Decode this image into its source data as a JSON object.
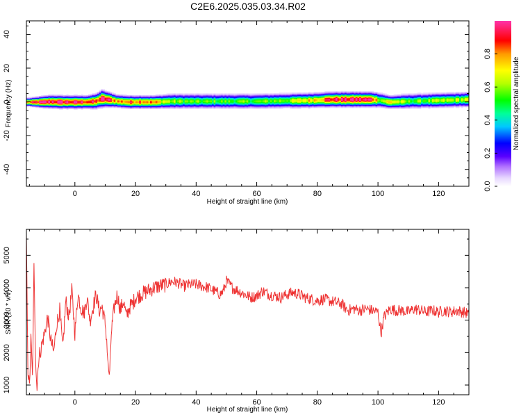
{
  "figure": {
    "title": "C2E6.2025.035.03.34.R02"
  },
  "chart_data": [
    {
      "type": "heatmap",
      "xlabel": "Height of straight line (km)",
      "ylabel": "Frequency (Hz)",
      "xlim": [
        -16,
        130
      ],
      "ylim": [
        -50,
        48
      ],
      "x_ticks": [
        0,
        20,
        40,
        60,
        80,
        100,
        120
      ],
      "y_ticks": [
        -40,
        -20,
        0,
        20,
        40
      ],
      "colorbar": {
        "label": "Normalized spectral amplitude",
        "range": [
          0,
          1
        ],
        "ticks": [
          0.0,
          0.2,
          0.4,
          0.6,
          0.8
        ]
      },
      "band": {
        "description_center_frequency_hz": 0,
        "ridge": [
          {
            "x": -15,
            "f": 0.0,
            "w": 2.0,
            "a": 0.8
          },
          {
            "x": -12,
            "f": 0.0,
            "w": 2.5,
            "a": 0.95
          },
          {
            "x": -8,
            "f": 0.2,
            "w": 3.0,
            "a": 1.0
          },
          {
            "x": -4,
            "f": 0.0,
            "w": 3.0,
            "a": 1.0
          },
          {
            "x": 0,
            "f": 0.0,
            "w": 3.0,
            "a": 0.95
          },
          {
            "x": 4,
            "f": 0.0,
            "w": 3.0,
            "a": 0.95
          },
          {
            "x": 7,
            "f": 0.5,
            "w": 3.5,
            "a": 0.85
          },
          {
            "x": 9,
            "f": 2.0,
            "w": 4.0,
            "a": 1.0
          },
          {
            "x": 11,
            "f": 1.5,
            "w": 3.5,
            "a": 0.95
          },
          {
            "x": 14,
            "f": 0.5,
            "w": 3.0,
            "a": 0.8
          },
          {
            "x": 18,
            "f": 0.0,
            "w": 3.0,
            "a": 0.85
          },
          {
            "x": 22,
            "f": 0.0,
            "w": 3.0,
            "a": 0.9
          },
          {
            "x": 26,
            "f": 0.0,
            "w": 3.0,
            "a": 0.8
          },
          {
            "x": 32,
            "f": 0.5,
            "w": 3.5,
            "a": 0.6
          },
          {
            "x": 40,
            "f": 0.5,
            "w": 3.5,
            "a": 0.55
          },
          {
            "x": 50,
            "f": 0.5,
            "w": 3.5,
            "a": 0.55
          },
          {
            "x": 60,
            "f": 0.5,
            "w": 3.5,
            "a": 0.55
          },
          {
            "x": 70,
            "f": 0.8,
            "w": 3.5,
            "a": 0.6
          },
          {
            "x": 78,
            "f": 1.0,
            "w": 3.5,
            "a": 0.75
          },
          {
            "x": 85,
            "f": 1.5,
            "w": 3.5,
            "a": 0.95
          },
          {
            "x": 92,
            "f": 1.5,
            "w": 3.5,
            "a": 1.0
          },
          {
            "x": 98,
            "f": 1.5,
            "w": 3.5,
            "a": 0.95
          },
          {
            "x": 101,
            "f": 1.0,
            "w": 3.5,
            "a": 0.6
          },
          {
            "x": 104,
            "f": 0.0,
            "w": 3.0,
            "a": 0.75
          },
          {
            "x": 110,
            "f": 0.5,
            "w": 3.5,
            "a": 0.55
          },
          {
            "x": 120,
            "f": 1.0,
            "w": 3.5,
            "a": 0.6
          },
          {
            "x": 130,
            "f": 1.5,
            "w": 3.5,
            "a": 0.65
          }
        ]
      }
    },
    {
      "type": "line",
      "xlabel": "Height of straight line (km)",
      "ylabel": "SNR (10 * v/v)",
      "xlim": [
        -16,
        130
      ],
      "ylim": [
        700,
        5800
      ],
      "x_ticks": [
        0,
        20,
        40,
        60,
        80,
        100,
        120
      ],
      "y_ticks": [
        1000,
        2000,
        3000,
        4000,
        5000
      ],
      "series": [
        {
          "color": "#ee3333",
          "x": [
            -16,
            -15.5,
            -15,
            -14.5,
            -14,
            -13.5,
            -13,
            -12.5,
            -12,
            -11,
            -10,
            -9,
            -8,
            -7,
            -6,
            -5,
            -4,
            -3,
            -2,
            -1,
            0,
            1,
            2,
            3,
            4,
            5,
            6,
            7,
            8,
            9,
            10,
            10.5,
            11,
            11.5,
            12,
            13,
            14,
            15,
            16,
            17,
            18,
            19,
            20,
            22,
            24,
            26,
            28,
            30,
            32,
            34,
            36,
            38,
            40,
            42,
            44,
            46,
            48,
            49,
            50,
            52,
            54,
            56,
            58,
            60,
            62,
            64,
            66,
            68,
            70,
            72,
            74,
            76,
            78,
            80,
            82,
            84,
            86,
            88,
            90,
            92,
            94,
            96,
            98,
            100,
            101,
            102,
            104,
            106,
            108,
            110,
            112,
            114,
            116,
            118,
            120,
            122,
            124,
            126,
            128,
            130
          ],
          "values": [
            5600,
            1500,
            900,
            2400,
            1200,
            4600,
            2000,
            900,
            1800,
            2200,
            2600,
            3100,
            2400,
            2000,
            2900,
            3300,
            2100,
            3600,
            3100,
            3900,
            2600,
            3800,
            3400,
            3200,
            3700,
            3000,
            3400,
            3800,
            3300,
            3400,
            2900,
            2400,
            1500,
            1300,
            2600,
            3400,
            3800,
            3300,
            3600,
            3100,
            3400,
            3500,
            3700,
            3800,
            3900,
            4000,
            4050,
            4100,
            4200,
            4150,
            4050,
            4100,
            4100,
            4050,
            4000,
            3900,
            3800,
            3900,
            4200,
            4000,
            3900,
            3800,
            3700,
            3750,
            3900,
            3800,
            3750,
            3700,
            3800,
            3850,
            3800,
            3700,
            3650,
            3600,
            3650,
            3600,
            3550,
            3500,
            3300,
            3350,
            3300,
            3350,
            3300,
            3250,
            2600,
            3100,
            3350,
            3300,
            3300,
            3250,
            3350,
            3300,
            3250,
            3300,
            3250,
            3300,
            3250,
            3300,
            3250,
            3200
          ]
        }
      ]
    }
  ]
}
